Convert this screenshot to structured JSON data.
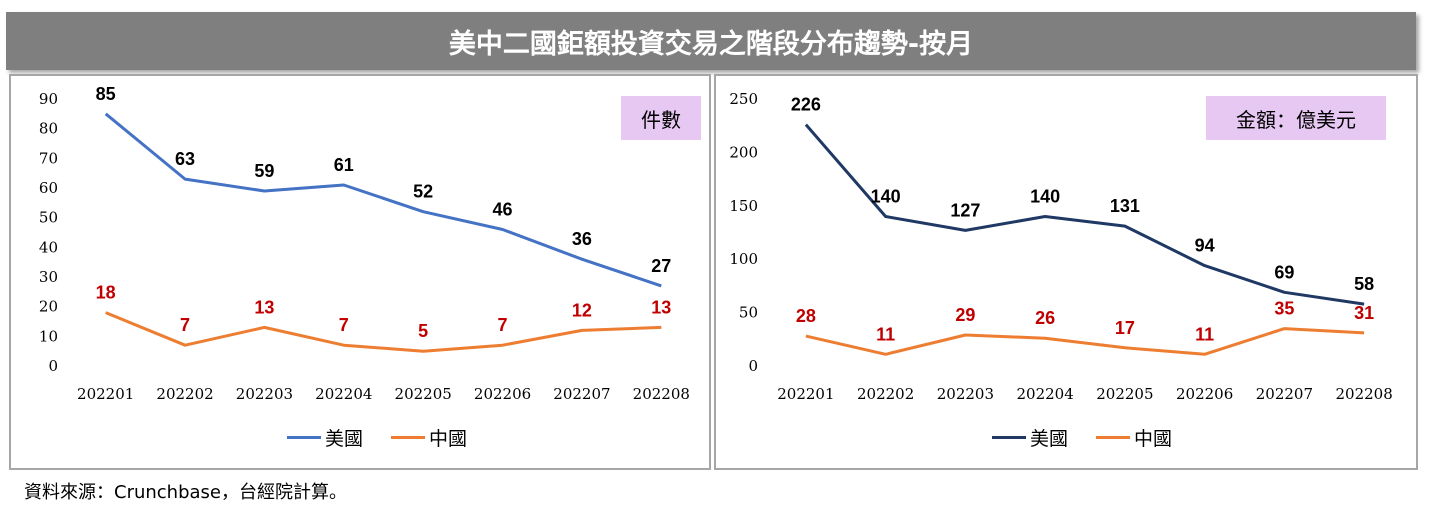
{
  "title": "美中二國鉅額投資交易之階段分布趨勢-按月",
  "source": "資料來源：Crunchbase，台經院計算。",
  "colors": {
    "us_left": "#4472c4",
    "us_right": "#1f3864",
    "china": "#ed7d31",
    "china_label": "#c00000",
    "unit_box": "#e7c8f3"
  },
  "chart_data": [
    {
      "type": "line",
      "unit_label": "件數",
      "categories": [
        "202201",
        "202202",
        "202203",
        "202204",
        "202205",
        "202206",
        "202207",
        "202208"
      ],
      "yticks": [
        "0",
        "10",
        "20",
        "30",
        "40",
        "50",
        "60",
        "70",
        "80",
        "90"
      ],
      "ylim": [
        0,
        90
      ],
      "grid": false,
      "legend_position": "bottom",
      "series": [
        {
          "name": "美國",
          "values": [
            85,
            63,
            59,
            61,
            52,
            46,
            36,
            27
          ]
        },
        {
          "name": "中國",
          "values": [
            18,
            7,
            13,
            7,
            5,
            7,
            12,
            13
          ]
        }
      ]
    },
    {
      "type": "line",
      "unit_label": "金額：億美元",
      "categories": [
        "202201",
        "202202",
        "202203",
        "202204",
        "202205",
        "202206",
        "202207",
        "202208"
      ],
      "yticks": [
        "0",
        "50",
        "100",
        "150",
        "200",
        "250"
      ],
      "ylim": [
        0,
        250
      ],
      "grid": false,
      "legend_position": "bottom",
      "series": [
        {
          "name": "美國",
          "values": [
            226,
            140,
            127,
            140,
            131,
            94,
            69,
            58
          ]
        },
        {
          "name": "中國",
          "values": [
            28,
            11,
            29,
            26,
            17,
            11,
            35,
            31
          ]
        }
      ]
    }
  ]
}
